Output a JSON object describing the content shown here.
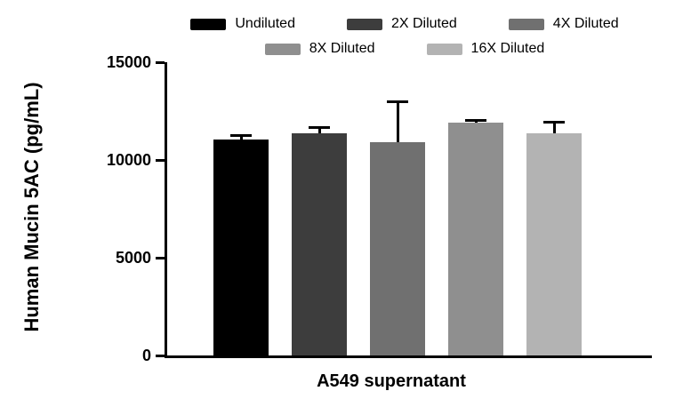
{
  "chart_data": {
    "type": "bar",
    "title": "",
    "xlabel": "A549 supernatant",
    "ylabel": "Human Mucin 5AC (pg/mL)",
    "ylim": [
      0,
      15000
    ],
    "yticks": [
      0,
      5000,
      10000,
      15000
    ],
    "grid": false,
    "legend_position": "top",
    "legend_rows": [
      [
        0,
        1,
        2
      ],
      [
        3,
        4
      ]
    ],
    "categories": [
      "Undiluted",
      "2X Diluted",
      "4X Diluted",
      "8X Diluted",
      "16X Diluted"
    ],
    "values": [
      11050,
      11350,
      10900,
      11900,
      11350
    ],
    "errors_plus": [
      250,
      400,
      2150,
      200,
      650
    ],
    "colors": [
      "#000000",
      "#3d3d3d",
      "#707070",
      "#8f8f8f",
      "#b3b3b3"
    ],
    "axis_color": "#000000"
  }
}
